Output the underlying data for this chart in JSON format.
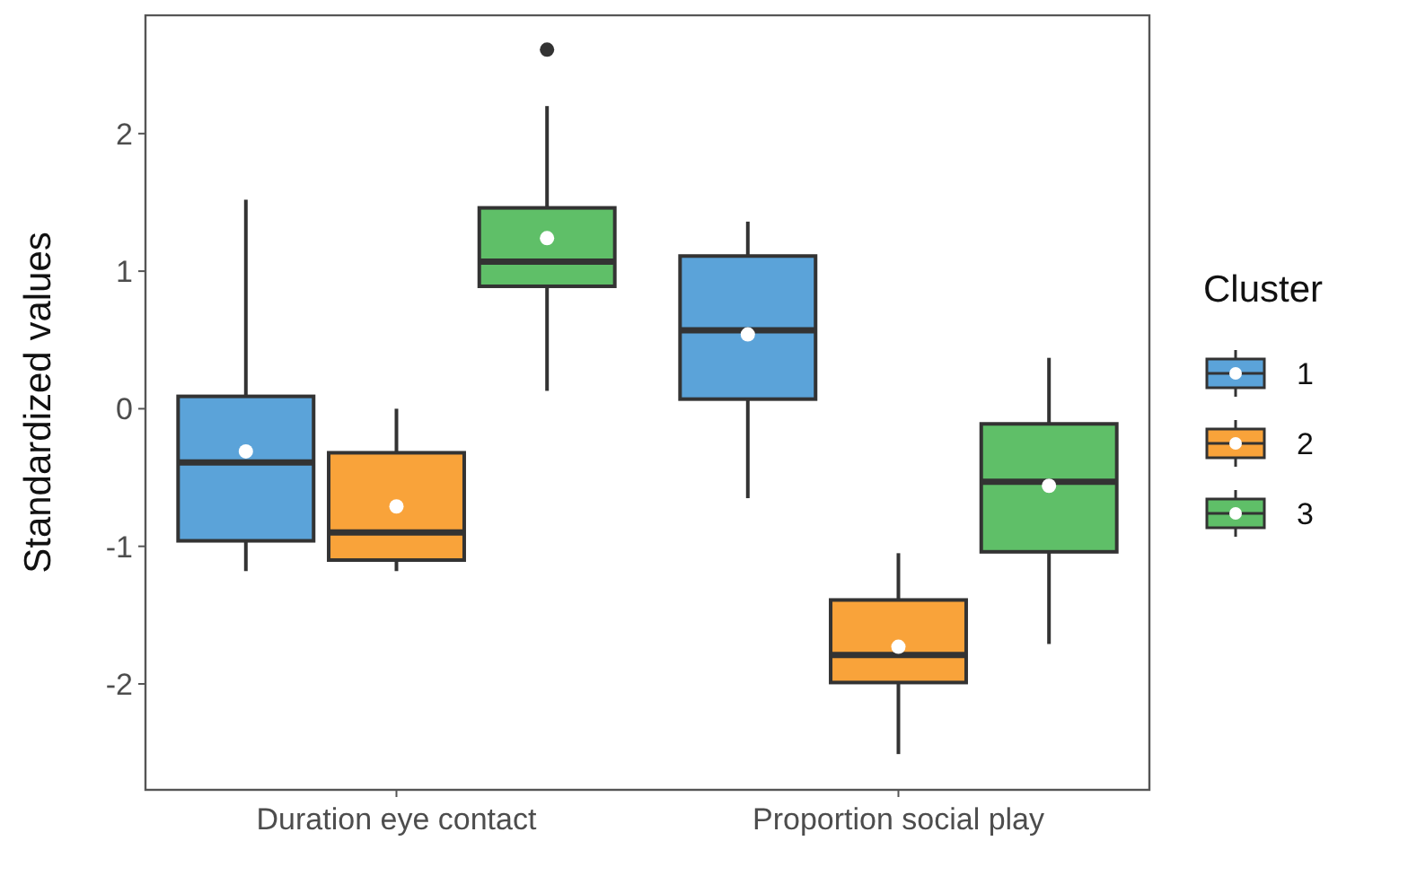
{
  "chart_data": {
    "type": "box",
    "ylabel": "Standardized values",
    "legend_title": "Cluster",
    "legend": "right",
    "grid": false,
    "categories": [
      "Duration eye contact",
      "Proportion social play"
    ],
    "ylim": [
      -2.77,
      2.86
    ],
    "yticks": [
      -2,
      -1,
      0,
      1,
      2
    ],
    "series": [
      {
        "name": "1",
        "color": "#5ba3d9",
        "boxes": [
          {
            "low": -1.18,
            "q1": -0.96,
            "median": -0.39,
            "q3": 0.09,
            "high": 1.52,
            "mean": -0.31
          },
          {
            "low": -0.65,
            "q1": 0.07,
            "median": 0.57,
            "q3": 1.11,
            "high": 1.36,
            "mean": 0.54
          }
        ]
      },
      {
        "name": "2",
        "color": "#f9a33a",
        "boxes": [
          {
            "low": -1.18,
            "q1": -1.1,
            "median": -0.9,
            "q3": -0.32,
            "high": 0.0,
            "mean": -0.71
          },
          {
            "low": -2.51,
            "q1": -1.99,
            "median": -1.79,
            "q3": -1.39,
            "high": -1.05,
            "mean": -1.73
          }
        ]
      },
      {
        "name": "3",
        "color": "#5fbf68",
        "boxes": [
          {
            "low": 0.13,
            "q1": 0.89,
            "median": 1.07,
            "q3": 1.46,
            "high": 2.2,
            "mean": 1.24,
            "outliers": [
              2.61
            ]
          },
          {
            "low": -1.71,
            "q1": -1.04,
            "median": -0.53,
            "q3": -0.11,
            "high": 0.37,
            "mean": -0.56
          }
        ]
      }
    ]
  }
}
